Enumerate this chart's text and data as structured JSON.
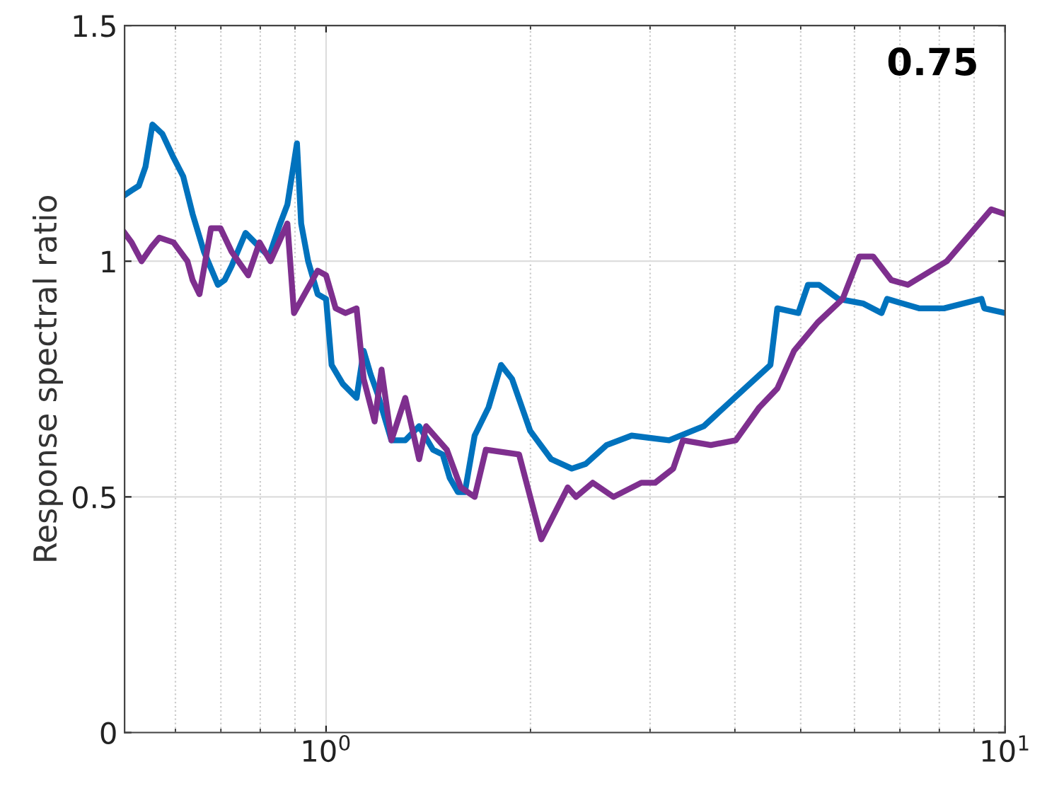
{
  "chart_data": {
    "type": "line",
    "ylabel": "Response spectral ratio",
    "annotations": [
      "0.75"
    ],
    "log": "x",
    "xlim": [
      0.505,
      10
    ],
    "ylim": [
      0,
      1.5
    ],
    "xticks": [
      {
        "value": 1,
        "label": "10$^{0}$"
      },
      {
        "value": 10,
        "label": "10$^{1}$"
      }
    ],
    "yticks": [
      0,
      0.5,
      1,
      1.5
    ],
    "grid": true,
    "line_style": "solid",
    "marker": "none",
    "series": [
      {
        "color": "#0072bd",
        "x": [
          0.505,
          0.517,
          0.53,
          0.542,
          0.555,
          0.574,
          0.596,
          0.616,
          0.636,
          0.661,
          0.693,
          0.709,
          0.726,
          0.761,
          0.798,
          0.824,
          0.856,
          0.877,
          0.906,
          0.919,
          0.941,
          0.972,
          1.0,
          1.019,
          1.058,
          1.109,
          1.136,
          1.163,
          1.19,
          1.248,
          1.308,
          1.371,
          1.437,
          1.485,
          1.521,
          1.564,
          1.601,
          1.655,
          1.735,
          1.81,
          1.879,
          1.998,
          2.145,
          2.301,
          2.412,
          2.589,
          2.818,
          3.2,
          3.6,
          3.993,
          4.512,
          4.619,
          4.959,
          5.125,
          5.321,
          5.684,
          6.185,
          6.577,
          6.702,
          7.468,
          8.128,
          9.23,
          9.32,
          10
        ],
        "values": [
          1.14,
          1.15,
          1.16,
          1.2,
          1.29,
          1.27,
          1.22,
          1.18,
          1.1,
          1.02,
          0.95,
          0.96,
          0.99,
          1.06,
          1.03,
          1.01,
          1.08,
          1.12,
          1.25,
          1.08,
          1.0,
          0.93,
          0.92,
          0.78,
          0.74,
          0.71,
          0.81,
          0.76,
          0.72,
          0.62,
          0.62,
          0.65,
          0.6,
          0.59,
          0.54,
          0.51,
          0.51,
          0.63,
          0.69,
          0.78,
          0.75,
          0.64,
          0.58,
          0.56,
          0.57,
          0.61,
          0.63,
          0.62,
          0.65,
          0.71,
          0.78,
          0.9,
          0.89,
          0.95,
          0.95,
          0.92,
          0.91,
          0.89,
          0.92,
          0.9,
          0.9,
          0.92,
          0.9,
          0.89
        ]
      },
      {
        "color": "#7e2f8e",
        "x": [
          0.505,
          0.517,
          0.535,
          0.553,
          0.568,
          0.596,
          0.625,
          0.636,
          0.651,
          0.677,
          0.699,
          0.726,
          0.768,
          0.798,
          0.828,
          0.877,
          0.897,
          0.972,
          1.0,
          1.033,
          1.068,
          1.109,
          1.136,
          1.179,
          1.207,
          1.248,
          1.308,
          1.371,
          1.404,
          1.506,
          1.579,
          1.655,
          1.719,
          1.924,
          2.075,
          2.269,
          2.334,
          2.47,
          2.65,
          2.912,
          3.052,
          3.245,
          3.354,
          3.686,
          4.012,
          4.345,
          4.619,
          4.889,
          5.296,
          5.765,
          6.099,
          6.392,
          6.797,
          7.192,
          8.205,
          9.54,
          10
        ],
        "values": [
          1.06,
          1.04,
          1.0,
          1.03,
          1.05,
          1.04,
          1.0,
          0.96,
          0.93,
          1.07,
          1.07,
          1.02,
          0.97,
          1.04,
          1.0,
          1.08,
          0.89,
          0.98,
          0.97,
          0.9,
          0.89,
          0.9,
          0.75,
          0.66,
          0.77,
          0.62,
          0.71,
          0.58,
          0.65,
          0.6,
          0.52,
          0.5,
          0.6,
          0.59,
          0.41,
          0.52,
          0.5,
          0.53,
          0.5,
          0.53,
          0.53,
          0.56,
          0.62,
          0.61,
          0.62,
          0.69,
          0.73,
          0.81,
          0.87,
          0.92,
          1.01,
          1.01,
          0.96,
          0.95,
          1.0,
          1.11,
          1.1
        ]
      }
    ]
  }
}
